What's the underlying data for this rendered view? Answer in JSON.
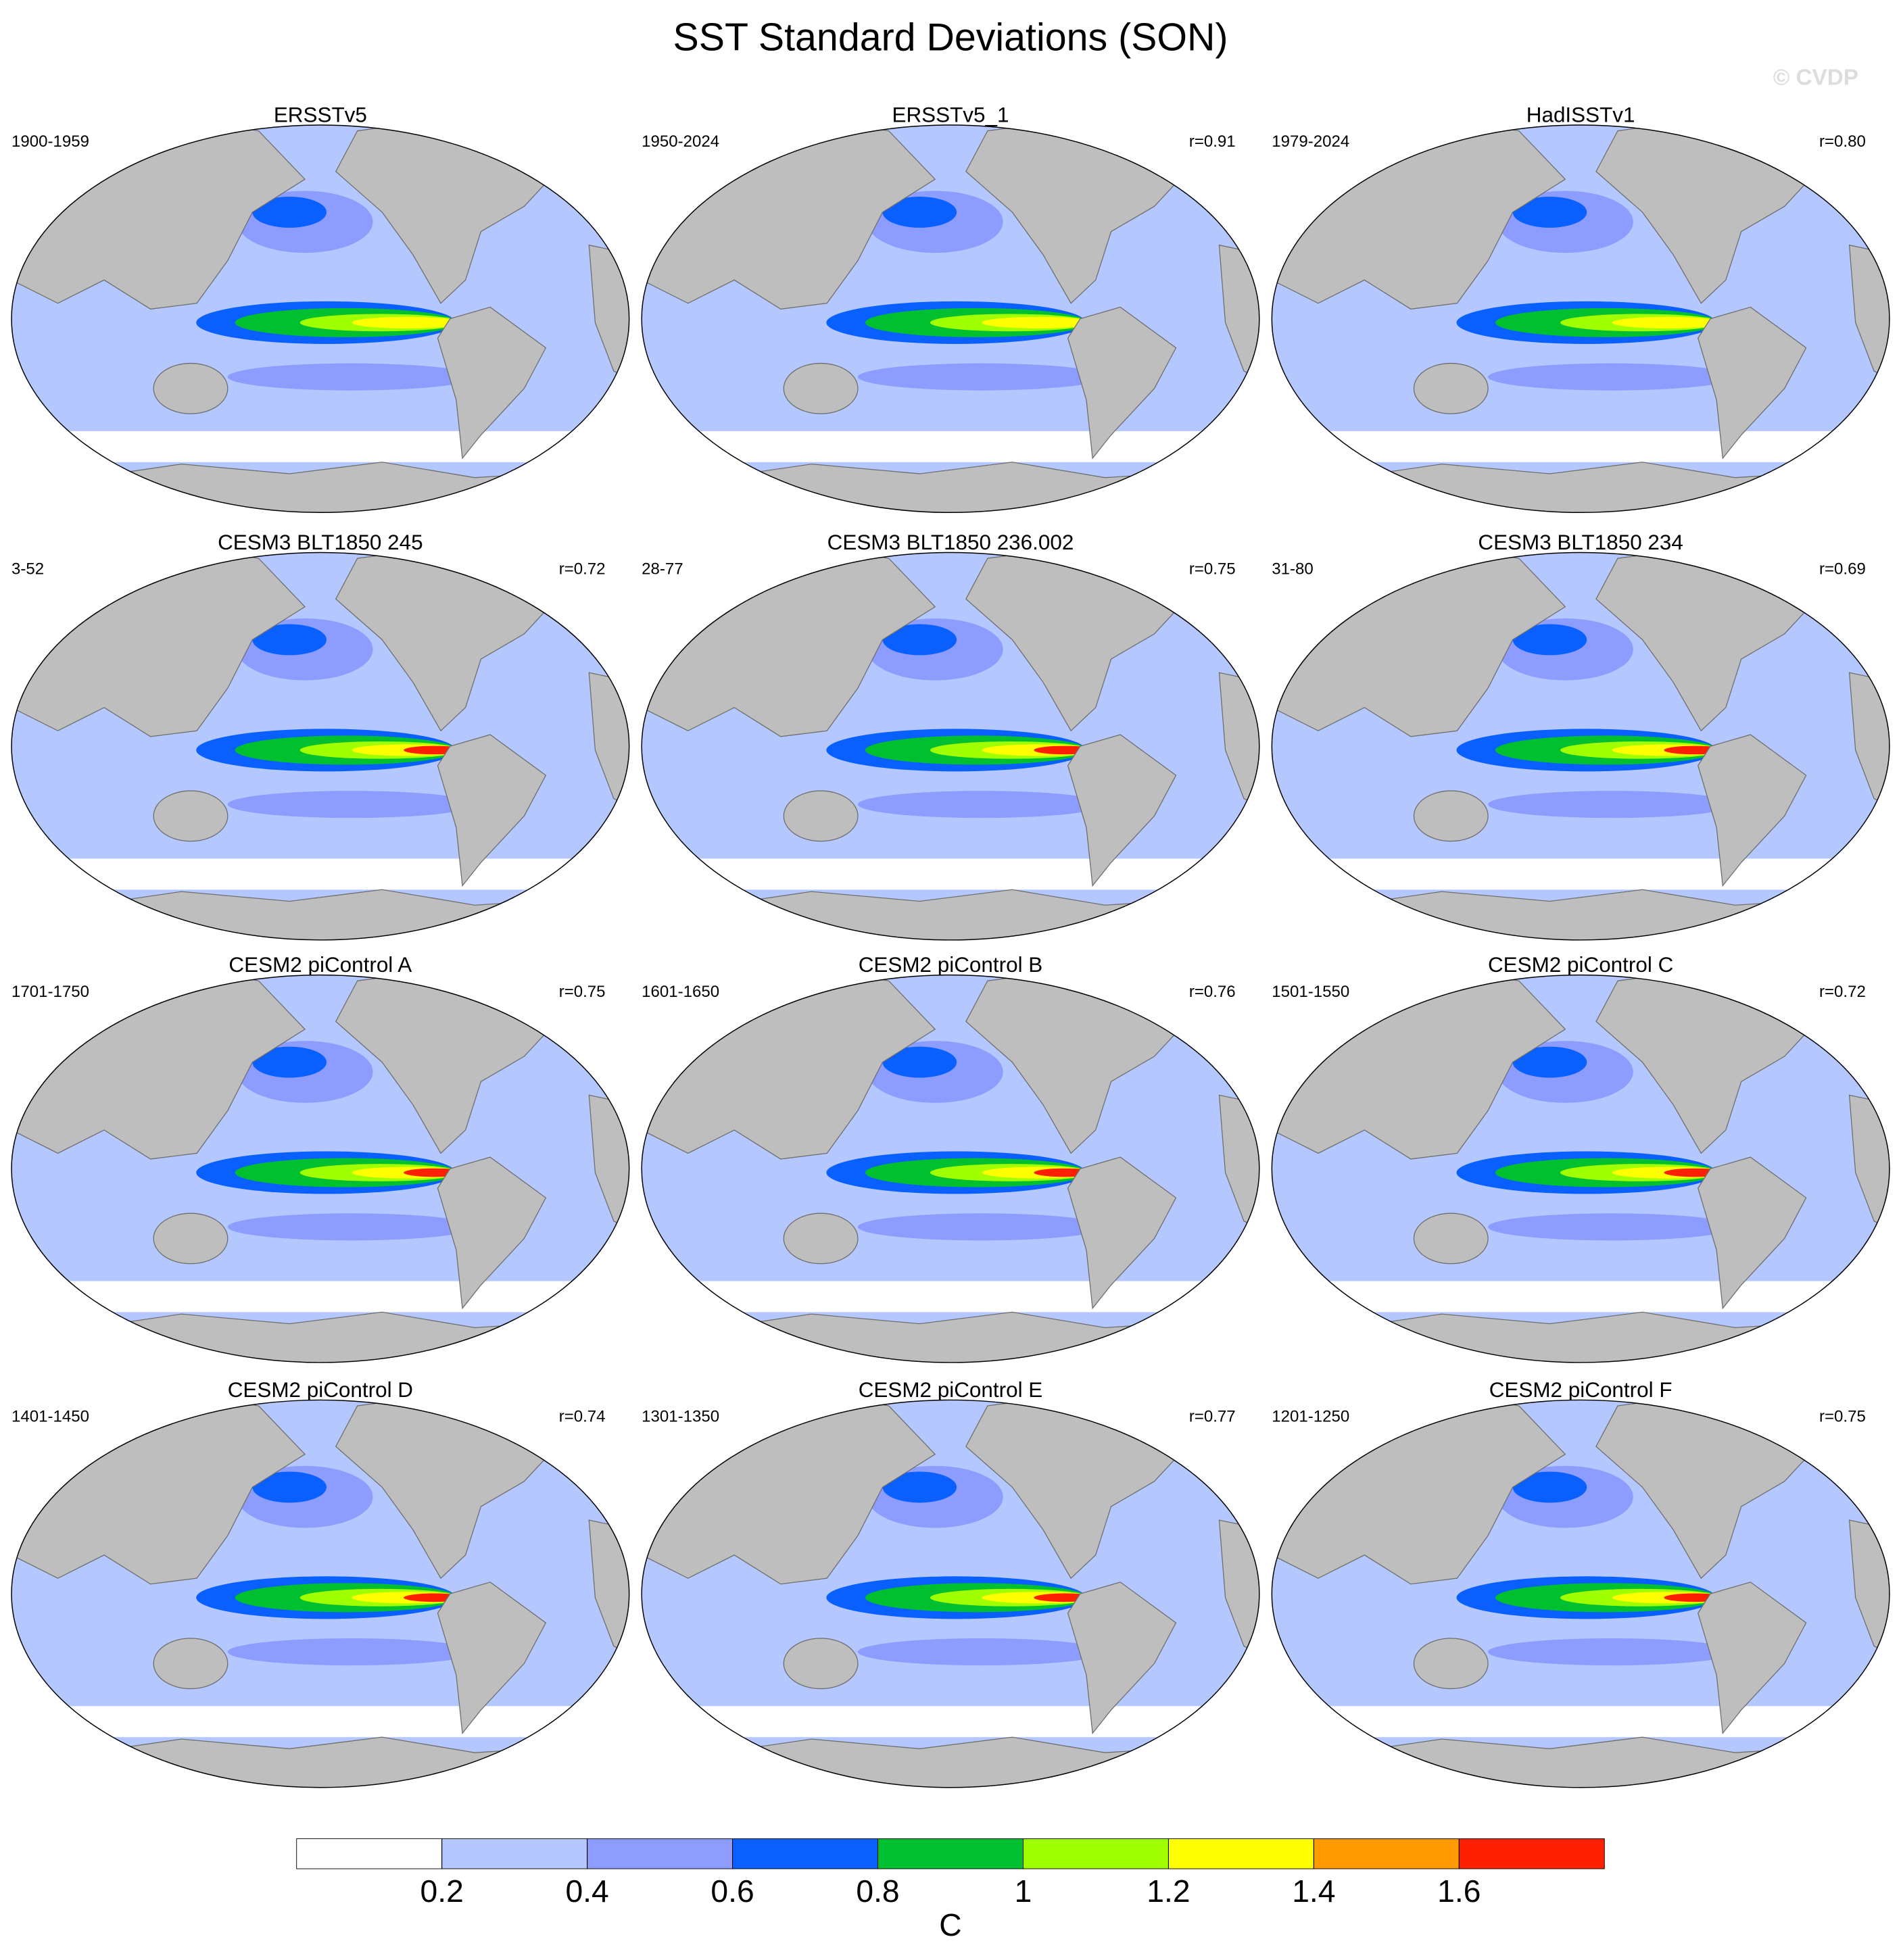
{
  "title": "SST Standard Deviations (SON)",
  "watermark": "© CVDP",
  "panels": [
    {
      "title": "ERSSTv5",
      "period": "1900-1959"
    },
    {
      "title": "ERSSTv5_1",
      "period": "1950-2024",
      "r": "r=0.91"
    },
    {
      "title": "HadISSTv1",
      "period": "1979-2024",
      "r": "r=0.80"
    },
    {
      "title": "CESM3 BLT1850 245",
      "period": "3-52",
      "r": "r=0.72"
    },
    {
      "title": "CESM3 BLT1850 236.002",
      "period": "28-77",
      "r": "r=0.75"
    },
    {
      "title": "CESM3 BLT1850 234",
      "period": "31-80",
      "r": "r=0.69"
    },
    {
      "title": "CESM2 piControl A",
      "period": "1701-1750",
      "r": "r=0.75"
    },
    {
      "title": "CESM2 piControl B",
      "period": "1601-1650",
      "r": "r=0.76"
    },
    {
      "title": "CESM2 piControl C",
      "period": "1501-1550",
      "r": "r=0.72"
    },
    {
      "title": "CESM2 piControl D",
      "period": "1401-1450",
      "r": "r=0.74"
    },
    {
      "title": "CESM2 piControl E",
      "period": "1301-1350",
      "r": "r=0.77"
    },
    {
      "title": "CESM2 piControl F",
      "period": "1201-1250",
      "r": "r=0.75"
    }
  ],
  "colorbar": {
    "levels": [
      0.2,
      0.4,
      0.6,
      0.8,
      1,
      1.2,
      1.4,
      1.6
    ],
    "colors": [
      "#ffffff",
      "#b4c8ff",
      "#8c9cff",
      "#0a60ff",
      "#00c030",
      "#a0ff00",
      "#ffff00",
      "#ff9a00",
      "#ff2000"
    ],
    "label": "C"
  }
}
